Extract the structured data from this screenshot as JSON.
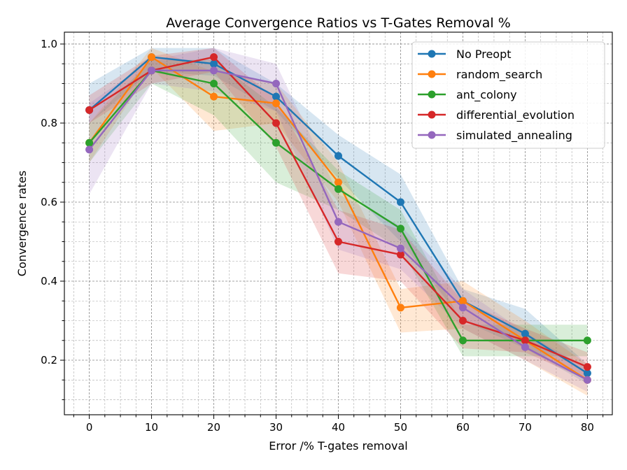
{
  "chart_data": {
    "type": "line",
    "title": "Average Convergence Ratios vs T-Gates Removal %",
    "xlabel": "Error /% T-gates removal",
    "ylabel": "Convergence rates",
    "x": [
      0,
      10,
      20,
      30,
      40,
      50,
      60,
      70,
      80
    ],
    "xlim": [
      -4,
      84
    ],
    "ylim": [
      0.062,
      1.03
    ],
    "xticks": [
      0,
      10,
      20,
      30,
      40,
      50,
      60,
      70,
      80
    ],
    "xtick_labels": [
      "0",
      "10",
      "20",
      "30",
      "40",
      "50",
      "60",
      "70",
      "80"
    ],
    "yticks": [
      0.2,
      0.4,
      0.6,
      0.8,
      1.0
    ],
    "ytick_labels": [
      "0.2",
      "0.4",
      "0.6",
      "0.8",
      "1.0"
    ],
    "grid": true,
    "legend_position": "top-right",
    "series": [
      {
        "name": "No Preopt",
        "color": "#1f77b4",
        "values": [
          0.833,
          0.967,
          0.95,
          0.867,
          0.717,
          0.6,
          0.35,
          0.267,
          0.167
        ],
        "band_low": [
          0.8,
          0.93,
          0.92,
          0.83,
          0.66,
          0.5,
          0.3,
          0.23,
          0.14
        ],
        "band_high": [
          0.9,
          0.99,
          0.99,
          0.9,
          0.77,
          0.67,
          0.38,
          0.33,
          0.19
        ]
      },
      {
        "name": "random_search",
        "color": "#ff7f0e",
        "values": [
          0.75,
          0.967,
          0.867,
          0.85,
          0.65,
          0.333,
          0.35,
          0.25,
          0.15
        ],
        "band_low": [
          0.7,
          0.94,
          0.78,
          0.8,
          0.6,
          0.27,
          0.28,
          0.2,
          0.11
        ],
        "band_high": [
          0.8,
          0.99,
          0.93,
          0.9,
          0.7,
          0.38,
          0.4,
          0.3,
          0.19
        ]
      },
      {
        "name": "ant_colony",
        "color": "#2ca02c",
        "values": [
          0.75,
          0.933,
          0.9,
          0.75,
          0.633,
          0.533,
          0.25,
          0.25,
          0.25
        ],
        "band_low": [
          0.7,
          0.9,
          0.82,
          0.65,
          0.58,
          0.48,
          0.21,
          0.21,
          0.21
        ],
        "band_high": [
          0.8,
          0.96,
          0.96,
          0.84,
          0.68,
          0.58,
          0.29,
          0.29,
          0.29
        ]
      },
      {
        "name": "differential_evolution",
        "color": "#d62728",
        "values": [
          0.833,
          0.933,
          0.967,
          0.8,
          0.5,
          0.467,
          0.3,
          0.25,
          0.183
        ],
        "band_low": [
          0.8,
          0.9,
          0.93,
          0.74,
          0.42,
          0.4,
          0.23,
          0.22,
          0.15
        ],
        "band_high": [
          0.87,
          0.97,
          0.99,
          0.86,
          0.58,
          0.53,
          0.35,
          0.28,
          0.22
        ]
      },
      {
        "name": "simulated_annealing",
        "color": "#9467bd",
        "values": [
          0.733,
          0.933,
          0.933,
          0.9,
          0.55,
          0.483,
          0.333,
          0.233,
          0.15
        ],
        "band_low": [
          0.62,
          0.9,
          0.88,
          0.83,
          0.48,
          0.43,
          0.28,
          0.2,
          0.12
        ],
        "band_high": [
          0.85,
          0.96,
          0.99,
          0.95,
          0.62,
          0.54,
          0.38,
          0.27,
          0.18
        ]
      }
    ]
  }
}
